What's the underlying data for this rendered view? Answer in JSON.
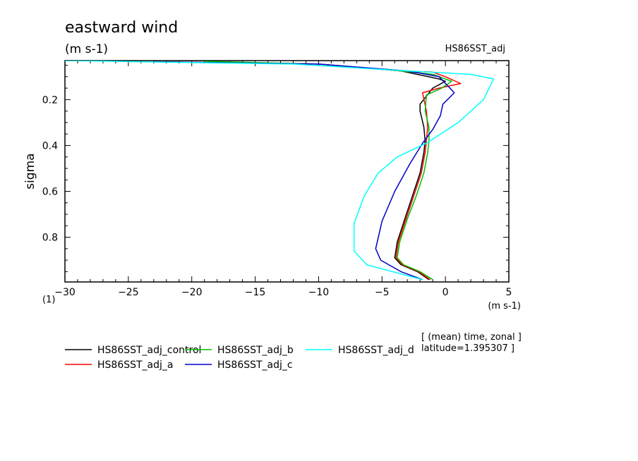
{
  "chart_data": {
    "type": "line",
    "title": "eastward wind",
    "subtitle": "(m s-1)",
    "run_label": "HS86SST_adj",
    "xlabel_units": "(m s-1)",
    "ylabel": "sigma",
    "yunit_marker": "(1)",
    "xlim": [
      -30,
      5
    ],
    "ylim": [
      0.03,
      0.995
    ],
    "y_inverted": true,
    "xticks": [
      -30,
      -25,
      -20,
      -15,
      -10,
      -5,
      0,
      5
    ],
    "xtick_labels": [
      "−30",
      "−25",
      "−20",
      "−15",
      "−10",
      "−5",
      "0",
      "5"
    ],
    "yticks": [
      0.2,
      0.4,
      0.6,
      0.8
    ],
    "ytick_labels": [
      "0.2",
      "0.4",
      "0.6",
      "0.8"
    ],
    "grid": false,
    "annotation_lines": [
      "[ (mean) time, zonal ]",
      "latitude=1.395307 ]"
    ],
    "series": [
      {
        "name": "HS86SST_adj_control",
        "color": "#000000",
        "points": [
          [
            -23,
            0.035
          ],
          [
            -10,
            0.045
          ],
          [
            -3.5,
            0.075
          ],
          [
            -0.5,
            0.11
          ],
          [
            0,
            0.12
          ],
          [
            -1,
            0.15
          ],
          [
            -2,
            0.22
          ],
          [
            -2,
            0.25
          ],
          [
            -1.7,
            0.32
          ],
          [
            -1.6,
            0.38
          ],
          [
            -1.7,
            0.43
          ],
          [
            -2,
            0.52
          ],
          [
            -2.6,
            0.62
          ],
          [
            -3.2,
            0.72
          ],
          [
            -3.8,
            0.82
          ],
          [
            -4,
            0.89
          ],
          [
            -3.5,
            0.92
          ],
          [
            -2.2,
            0.95
          ],
          [
            -1.3,
            0.985
          ]
        ]
      },
      {
        "name": "HS86SST_adj_a",
        "color": "#ff0000",
        "points": [
          [
            -23,
            0.035
          ],
          [
            -10,
            0.045
          ],
          [
            -3.5,
            0.075
          ],
          [
            -1,
            0.08
          ],
          [
            0,
            0.1
          ],
          [
            1.2,
            0.13
          ],
          [
            -0.5,
            0.15
          ],
          [
            -1.8,
            0.17
          ],
          [
            -1.5,
            0.25
          ],
          [
            -1.4,
            0.32
          ],
          [
            -1.5,
            0.38
          ],
          [
            -1.6,
            0.43
          ],
          [
            -1.9,
            0.52
          ],
          [
            -2.5,
            0.62
          ],
          [
            -3.1,
            0.72
          ],
          [
            -3.7,
            0.82
          ],
          [
            -3.9,
            0.89
          ],
          [
            -3.4,
            0.92
          ],
          [
            -2.1,
            0.95
          ],
          [
            -1.2,
            0.985
          ]
        ]
      },
      {
        "name": "HS86SST_adj_b",
        "color": "#00c000",
        "points": [
          [
            -19,
            0.033
          ],
          [
            -10,
            0.045
          ],
          [
            -3.5,
            0.075
          ],
          [
            -1,
            0.09
          ],
          [
            0.5,
            0.12
          ],
          [
            -0.3,
            0.15
          ],
          [
            -1.5,
            0.18
          ],
          [
            -1.6,
            0.25
          ],
          [
            -1.3,
            0.32
          ],
          [
            -1.3,
            0.38
          ],
          [
            -1.4,
            0.43
          ],
          [
            -1.7,
            0.52
          ],
          [
            -2.3,
            0.62
          ],
          [
            -3,
            0.72
          ],
          [
            -3.6,
            0.82
          ],
          [
            -3.8,
            0.89
          ],
          [
            -3.3,
            0.92
          ],
          [
            -2,
            0.95
          ],
          [
            -1,
            0.985
          ]
        ]
      },
      {
        "name": "HS86SST_adj_c",
        "color": "#0000c8",
        "points": [
          [
            -23,
            0.035
          ],
          [
            -10,
            0.045
          ],
          [
            -3,
            0.075
          ],
          [
            -0.5,
            0.1
          ],
          [
            0.7,
            0.17
          ],
          [
            -0.2,
            0.22
          ],
          [
            -0.4,
            0.27
          ],
          [
            -1,
            0.33
          ],
          [
            -1.8,
            0.39
          ],
          [
            -2.8,
            0.48
          ],
          [
            -4,
            0.6
          ],
          [
            -5,
            0.73
          ],
          [
            -5.5,
            0.85
          ],
          [
            -5.1,
            0.9
          ],
          [
            -3.5,
            0.95
          ],
          [
            -1.8,
            0.985
          ]
        ]
      },
      {
        "name": "HS86SST_adj_d",
        "color": "#00ffff",
        "points": [
          [
            -30,
            0.03
          ],
          [
            -12,
            0.045
          ],
          [
            -3,
            0.075
          ],
          [
            2,
            0.09
          ],
          [
            3.8,
            0.11
          ],
          [
            3,
            0.2
          ],
          [
            1,
            0.3
          ],
          [
            -1.5,
            0.39
          ],
          [
            -3.8,
            0.45
          ],
          [
            -5.3,
            0.52
          ],
          [
            -6.4,
            0.62
          ],
          [
            -7.2,
            0.74
          ],
          [
            -7.2,
            0.86
          ],
          [
            -6.2,
            0.92
          ],
          [
            -3.5,
            0.96
          ],
          [
            -1.8,
            0.985
          ]
        ]
      }
    ]
  }
}
